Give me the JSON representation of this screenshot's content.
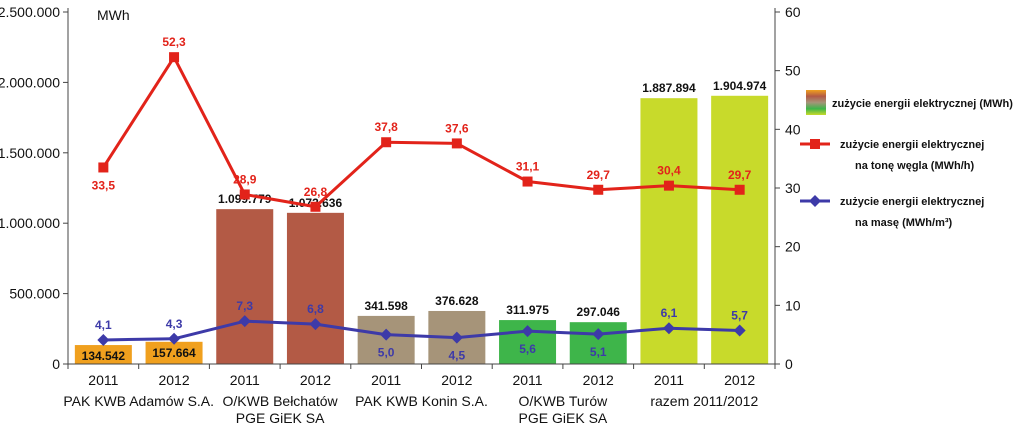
{
  "chart_data": {
    "type": "bar",
    "unit_label": "MWh",
    "y_left": {
      "min": 0,
      "max": 2500000,
      "ticks": [
        "0",
        "500.000",
        "1.000.000",
        "1.500.000",
        "2.000.000",
        "2.500.000"
      ]
    },
    "y_right": {
      "min": 0,
      "max": 60,
      "ticks": [
        "0",
        "10",
        "20",
        "30",
        "40",
        "50",
        "60"
      ]
    },
    "grid": false,
    "legend_position": "right",
    "years": [
      "2011",
      "2012",
      "2011",
      "2012",
      "2011",
      "2012",
      "2011",
      "2012",
      "2011",
      "2012"
    ],
    "groups": [
      {
        "lines": [
          "PAK KWB Adamów S.A."
        ],
        "bar_color": "#f0a01e"
      },
      {
        "lines": [
          "O/KWB Bełchatów",
          "PGE GiEK SA"
        ],
        "bar_color": "#b35a45"
      },
      {
        "lines": [
          "PAK KWB Konin S.A."
        ],
        "bar_color": "#a69479"
      },
      {
        "lines": [
          "O/KWB Turów",
          "PGE GiEK SA"
        ],
        "bar_color": "#3eb54a"
      },
      {
        "lines": [
          "razem 2011/2012"
        ],
        "bar_color": "#c8da2b"
      }
    ],
    "series": [
      {
        "name": "zużycie energii elektrycznej (MWh)",
        "axis": "left",
        "kind": "bar",
        "values": [
          134542,
          157664,
          1099779,
          1073636,
          341598,
          376628,
          311975,
          297046,
          1887894,
          1904974
        ],
        "labels": [
          "134.542",
          "157.664",
          "1.099.779",
          "1.073.636",
          "341.598",
          "376.628",
          "311.975",
          "297.046",
          "1.887.894",
          "1.904.974"
        ]
      },
      {
        "name": "zużycie energii elektrycznej na tonę węgla (MWh/h)",
        "legend_lines": [
          "zużycie energii elektrycznej",
          "na tonę węgla (MWh/h)"
        ],
        "axis": "right",
        "kind": "line",
        "color": "#e2231a",
        "marker": "square",
        "values": [
          33.5,
          52.3,
          28.9,
          26.8,
          37.8,
          37.6,
          31.1,
          29.7,
          30.4,
          29.7
        ],
        "labels": [
          "33,5",
          "52,3",
          "28,9",
          "26,8",
          "37,8",
          "37,6",
          "31,1",
          "29,7",
          "30,4",
          "29,7"
        ]
      },
      {
        "name": "zużycie energii elektrycznej na masę (MWh/m³)",
        "legend_lines": [
          "zużycie energii elektrycznej",
          "na masę (MWh/m³)"
        ],
        "axis": "right",
        "kind": "line",
        "color": "#3d3aa8",
        "marker": "diamond",
        "values": [
          4.1,
          4.3,
          7.3,
          6.8,
          5.0,
          4.5,
          5.6,
          5.1,
          6.1,
          5.7
        ],
        "labels": [
          "4,1",
          "4,3",
          "7,3",
          "6,8",
          "5,0",
          "4,5",
          "5,6",
          "5,1",
          "6,1",
          "5,7"
        ]
      }
    ]
  }
}
